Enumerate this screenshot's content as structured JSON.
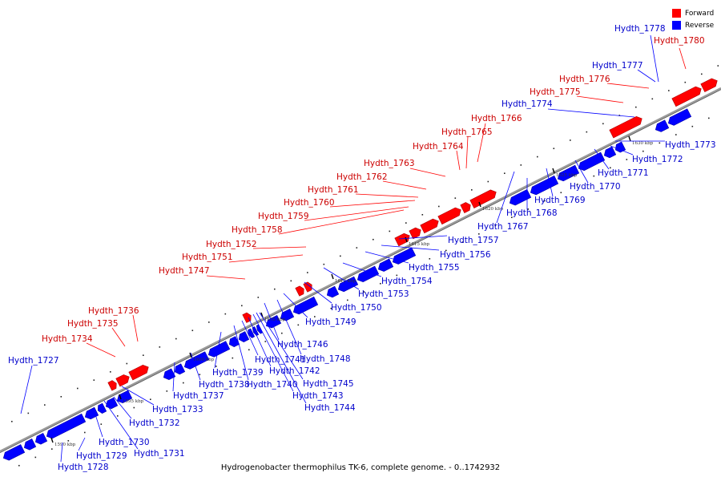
{
  "caption": "Hydrogenobacter thermophilus TK-6, complete genome. - 0..1742932",
  "legend": [
    {
      "label": "Forward",
      "color": "#ff0000"
    },
    {
      "label": "Reverse",
      "color": "#0000ff"
    }
  ],
  "colors": {
    "forward": "#ff0000",
    "reverse": "#0000ff",
    "axis": "#9a9a9a",
    "leader_forward": "#ff0000",
    "leader_reverse": "#0000ff"
  },
  "coordinate_labels": [
    "1590 kbp",
    "1595 kbp",
    "1600 kbp",
    "1605 kbp",
    "1610 kbp",
    "1615 kbp",
    "1620 kbp",
    "1625 kbp",
    "1630 kbp"
  ],
  "genes": [
    {
      "name": "Hydth_1727",
      "strand": "reverse"
    },
    {
      "name": "Hydth_1728",
      "strand": "reverse"
    },
    {
      "name": "Hydth_1729",
      "strand": "reverse"
    },
    {
      "name": "Hydth_1730",
      "strand": "reverse"
    },
    {
      "name": "Hydth_1731",
      "strand": "reverse"
    },
    {
      "name": "Hydth_1732",
      "strand": "reverse"
    },
    {
      "name": "Hydth_1733",
      "strand": "reverse"
    },
    {
      "name": "Hydth_1734",
      "strand": "forward"
    },
    {
      "name": "Hydth_1735",
      "strand": "forward"
    },
    {
      "name": "Hydth_1736",
      "strand": "forward"
    },
    {
      "name": "Hydth_1737",
      "strand": "reverse"
    },
    {
      "name": "Hydth_1738",
      "strand": "reverse"
    },
    {
      "name": "Hydth_1739",
      "strand": "reverse"
    },
    {
      "name": "Hydth_1740",
      "strand": "reverse"
    },
    {
      "name": "Hydth_1741",
      "strand": "reverse"
    },
    {
      "name": "Hydth_1742",
      "strand": "reverse"
    },
    {
      "name": "Hydth_1743",
      "strand": "reverse"
    },
    {
      "name": "Hydth_1744",
      "strand": "reverse"
    },
    {
      "name": "Hydth_1745",
      "strand": "reverse"
    },
    {
      "name": "Hydth_1746",
      "strand": "reverse"
    },
    {
      "name": "Hydth_1747",
      "strand": "forward"
    },
    {
      "name": "Hydth_1748",
      "strand": "reverse"
    },
    {
      "name": "Hydth_1749",
      "strand": "reverse"
    },
    {
      "name": "Hydth_1750",
      "strand": "reverse"
    },
    {
      "name": "Hydth_1751",
      "strand": "forward"
    },
    {
      "name": "Hydth_1752",
      "strand": "forward"
    },
    {
      "name": "Hydth_1753",
      "strand": "reverse"
    },
    {
      "name": "Hydth_1754",
      "strand": "reverse"
    },
    {
      "name": "Hydth_1755",
      "strand": "reverse"
    },
    {
      "name": "Hydth_1756",
      "strand": "reverse"
    },
    {
      "name": "Hydth_1757",
      "strand": "reverse"
    },
    {
      "name": "Hydth_1758",
      "strand": "forward"
    },
    {
      "name": "Hydth_1759",
      "strand": "forward"
    },
    {
      "name": "Hydth_1760",
      "strand": "forward"
    },
    {
      "name": "Hydth_1761",
      "strand": "forward"
    },
    {
      "name": "Hydth_1762",
      "strand": "forward"
    },
    {
      "name": "Hydth_1763",
      "strand": "forward"
    },
    {
      "name": "Hydth_1764",
      "strand": "forward"
    },
    {
      "name": "Hydth_1765",
      "strand": "forward"
    },
    {
      "name": "Hydth_1766",
      "strand": "forward"
    },
    {
      "name": "Hydth_1767",
      "strand": "reverse"
    },
    {
      "name": "Hydth_1768",
      "strand": "reverse"
    },
    {
      "name": "Hydth_1769",
      "strand": "reverse"
    },
    {
      "name": "Hydth_1770",
      "strand": "reverse"
    },
    {
      "name": "Hydth_1771",
      "strand": "reverse"
    },
    {
      "name": "Hydth_1772",
      "strand": "reverse"
    },
    {
      "name": "Hydth_1773",
      "strand": "reverse"
    },
    {
      "name": "Hydth_1774",
      "strand": "reverse"
    },
    {
      "name": "Hydth_1775",
      "strand": "forward"
    },
    {
      "name": "Hydth_1776",
      "strand": "forward"
    },
    {
      "name": "Hydth_1777",
      "strand": "reverse"
    },
    {
      "name": "Hydth_1778",
      "strand": "reverse"
    },
    {
      "name": "Hydth_1780",
      "strand": "forward"
    }
  ]
}
